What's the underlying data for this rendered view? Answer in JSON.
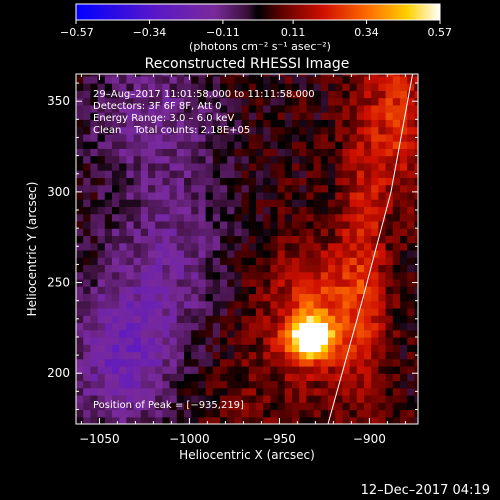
{
  "chart_data": {
    "type": "heatmap",
    "title": "Reconstructed RHESSI Image",
    "xlabel": "Heliocentric X (arcsec)",
    "ylabel": "Heliocentric Y (arcsec)",
    "xlim": [
      -1063,
      -873
    ],
    "ylim": [
      172,
      365
    ],
    "x_ticks": [
      -1050,
      -1000,
      -950,
      -900
    ],
    "x_tick_labels": [
      "−1050",
      "−1000",
      "−950",
      "−900"
    ],
    "y_ticks": [
      200,
      250,
      300,
      350
    ],
    "y_tick_labels": [
      "200",
      "250",
      "300",
      "350"
    ],
    "colorbar": {
      "min": -0.57,
      "max": 0.57,
      "ticks": [
        -0.57,
        -0.34,
        -0.11,
        0.11,
        0.34,
        0.57
      ],
      "tick_labels": [
        "−0.57",
        "−0.34",
        "−0.11",
        "0.11",
        "0.34",
        "0.57"
      ],
      "units_label": "(photons cm⁻² s⁻¹ asec⁻²)"
    },
    "peak": {
      "x": -935,
      "y": 219
    },
    "annotations": [
      "29–Aug–2017 11:01:58.000 to 11:11:58.000",
      "Detectors: 3F 6F 8F, Att 0",
      "Energy Range: 3.0 – 6.0 keV",
      "Clean    Total counts: 2.18E+05"
    ],
    "peak_label": "Position of Peak = [−935,219]",
    "limb": [
      [
        -923,
        172
      ],
      [
        -904,
        240
      ],
      [
        -888,
        300
      ],
      [
        -876,
        365
      ]
    ],
    "grid": false,
    "sources": [
      {
        "x": -935,
        "y": 218,
        "amp": 0.58,
        "sx": 8,
        "sy": 8
      },
      {
        "x": -930,
        "y": 232,
        "amp": 0.22,
        "sx": 18,
        "sy": 25
      },
      {
        "x": -905,
        "y": 270,
        "amp": 0.16,
        "sx": 9,
        "sy": 70
      },
      {
        "x": -885,
        "y": 340,
        "amp": 0.2,
        "sx": 10,
        "sy": 30
      },
      {
        "x": -975,
        "y": 230,
        "amp": 0.08,
        "sx": 25,
        "sy": 70
      },
      {
        "x": -1005,
        "y": 265,
        "amp": -0.18,
        "sx": 30,
        "sy": 45
      },
      {
        "x": -1040,
        "y": 205,
        "amp": -0.22,
        "sx": 20,
        "sy": 30
      },
      {
        "x": -1025,
        "y": 345,
        "amp": -0.12,
        "sx": 30,
        "sy": 25
      }
    ],
    "baseline": 0.03,
    "noise": 0.07
  },
  "footer": {
    "timestamp": "12–Dec–2017 04:19"
  }
}
